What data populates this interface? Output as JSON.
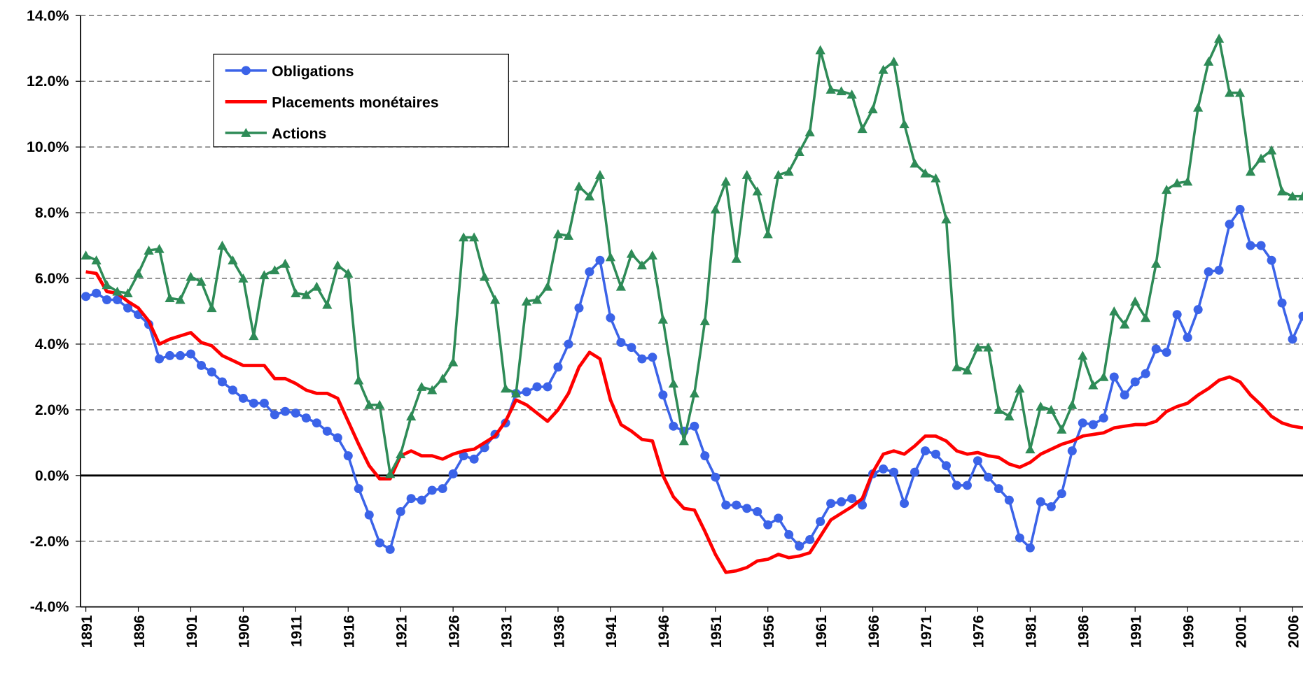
{
  "chart_data": {
    "type": "line",
    "x": [
      1891,
      1892,
      1893,
      1894,
      1895,
      1896,
      1897,
      1898,
      1899,
      1900,
      1901,
      1902,
      1903,
      1904,
      1905,
      1906,
      1907,
      1908,
      1909,
      1910,
      1911,
      1912,
      1913,
      1914,
      1915,
      1916,
      1917,
      1918,
      1919,
      1920,
      1921,
      1922,
      1923,
      1924,
      1925,
      1926,
      1927,
      1928,
      1929,
      1930,
      1931,
      1932,
      1933,
      1934,
      1935,
      1936,
      1937,
      1938,
      1939,
      1940,
      1941,
      1942,
      1943,
      1944,
      1945,
      1946,
      1947,
      1948,
      1949,
      1950,
      1951,
      1952,
      1953,
      1954,
      1955,
      1956,
      1957,
      1958,
      1959,
      1960,
      1961,
      1962,
      1963,
      1964,
      1965,
      1966,
      1967,
      1968,
      1969,
      1970,
      1971,
      1972,
      1973,
      1974,
      1975,
      1976,
      1977,
      1978,
      1979,
      1980,
      1981,
      1982,
      1983,
      1984,
      1985,
      1986,
      1987,
      1988,
      1989,
      1990,
      1991,
      1992,
      1993,
      1994,
      1995,
      1996,
      1997,
      1998,
      1999,
      2000,
      2001,
      2002,
      2003,
      2004,
      2005,
      2006,
      2007
    ],
    "series": [
      {
        "name": "Obligations",
        "color": "#3b63e8",
        "marker": "circle",
        "values": [
          5.45,
          5.55,
          5.35,
          5.35,
          5.1,
          4.9,
          4.6,
          3.55,
          3.65,
          3.65,
          3.7,
          3.35,
          3.15,
          2.85,
          2.6,
          2.35,
          2.2,
          2.2,
          1.85,
          1.95,
          1.9,
          1.75,
          1.6,
          1.35,
          1.15,
          0.6,
          -0.4,
          -1.2,
          -2.05,
          -2.25,
          -1.1,
          -0.7,
          -0.75,
          -0.45,
          -0.4,
          0.05,
          0.6,
          0.5,
          0.85,
          1.25,
          1.6,
          2.5,
          2.55,
          2.7,
          2.7,
          3.3,
          4.0,
          5.1,
          6.2,
          6.55,
          4.8,
          4.05,
          3.9,
          3.55,
          3.6,
          2.45,
          1.5,
          1.35,
          1.5,
          0.6,
          -0.05,
          -0.9,
          -0.9,
          -1.0,
          -1.1,
          -1.5,
          -1.3,
          -1.8,
          -2.15,
          -1.95,
          -1.4,
          -0.85,
          -0.8,
          -0.7,
          -0.9,
          0.05,
          0.2,
          0.1,
          -0.85,
          0.1,
          0.75,
          0.65,
          0.3,
          -0.3,
          -0.3,
          0.45,
          -0.05,
          -0.4,
          -0.75,
          -1.9,
          -2.2,
          -0.8,
          -0.95,
          -0.55,
          0.75,
          1.6,
          1.55,
          1.75,
          3.0,
          2.45,
          2.85,
          3.1,
          3.85,
          3.75,
          4.9,
          4.2,
          5.05,
          6.2,
          6.25,
          7.65,
          8.1,
          7.0,
          7.0,
          6.55,
          5.25,
          4.15,
          4.85
        ]
      },
      {
        "name": "Placements monétaires",
        "color": "#ff0000",
        "marker": "none",
        "values": [
          6.2,
          6.15,
          5.6,
          5.55,
          5.3,
          5.1,
          4.7,
          4.0,
          4.15,
          4.25,
          4.35,
          4.05,
          3.95,
          3.65,
          3.5,
          3.35,
          3.35,
          3.35,
          2.95,
          2.95,
          2.8,
          2.6,
          2.5,
          2.5,
          2.35,
          1.65,
          0.95,
          0.3,
          -0.1,
          -0.1,
          0.6,
          0.75,
          0.6,
          0.6,
          0.5,
          0.65,
          0.75,
          0.8,
          1.0,
          1.2,
          1.65,
          2.3,
          2.15,
          1.9,
          1.65,
          2.0,
          2.5,
          3.3,
          3.75,
          3.55,
          2.3,
          1.55,
          1.35,
          1.1,
          1.05,
          0.0,
          -0.65,
          -1.0,
          -1.05,
          -1.7,
          -2.4,
          -2.95,
          -2.9,
          -2.8,
          -2.6,
          -2.55,
          -2.4,
          -2.5,
          -2.45,
          -2.35,
          -1.85,
          -1.35,
          -1.15,
          -0.95,
          -0.7,
          0.1,
          0.65,
          0.75,
          0.65,
          0.9,
          1.2,
          1.2,
          1.05,
          0.75,
          0.65,
          0.7,
          0.6,
          0.55,
          0.35,
          0.25,
          0.4,
          0.65,
          0.8,
          0.95,
          1.05,
          1.2,
          1.25,
          1.3,
          1.45,
          1.5,
          1.55,
          1.55,
          1.65,
          1.95,
          2.1,
          2.2,
          2.45,
          2.65,
          2.9,
          3.0,
          2.85,
          2.45,
          2.15,
          1.8,
          1.6,
          1.5,
          1.45
        ]
      },
      {
        "name": "Actions",
        "color": "#2e8b57",
        "marker": "triangle",
        "values": [
          6.7,
          6.55,
          5.8,
          5.6,
          5.55,
          6.15,
          6.85,
          6.9,
          5.4,
          5.35,
          6.05,
          5.9,
          5.1,
          7.0,
          6.55,
          6.0,
          4.25,
          6.1,
          6.25,
          6.45,
          5.55,
          5.5,
          5.75,
          5.2,
          6.4,
          6.15,
          2.9,
          2.15,
          2.15,
          0.05,
          0.65,
          1.8,
          2.7,
          2.6,
          2.95,
          3.45,
          7.25,
          7.25,
          6.05,
          5.35,
          2.65,
          2.5,
          5.3,
          5.35,
          5.75,
          7.35,
          7.3,
          8.8,
          8.5,
          9.15,
          6.65,
          5.75,
          6.75,
          6.4,
          6.7,
          4.75,
          2.8,
          1.05,
          2.5,
          4.7,
          8.1,
          8.95,
          6.6,
          9.15,
          8.65,
          7.35,
          9.15,
          9.25,
          9.85,
          10.45,
          12.95,
          11.75,
          11.7,
          11.6,
          10.55,
          11.15,
          12.35,
          12.6,
          10.7,
          9.5,
          9.2,
          9.05,
          7.8,
          3.3,
          3.2,
          3.9,
          3.9,
          2.0,
          1.8,
          2.65,
          0.8,
          2.1,
          2.0,
          1.4,
          2.15,
          3.65,
          2.75,
          3.0,
          5.0,
          4.6,
          5.3,
          4.8,
          6.45,
          8.7,
          8.9,
          8.95,
          11.2,
          12.6,
          13.3,
          11.65,
          11.65,
          9.25,
          9.65,
          9.9,
          8.65,
          8.5,
          8.5
        ]
      }
    ],
    "xlim": [
      1890.5,
      2007
    ],
    "xticks": [
      1891,
      1896,
      1901,
      1906,
      1911,
      1916,
      1921,
      1926,
      1931,
      1936,
      1941,
      1946,
      1951,
      1956,
      1961,
      1966,
      1971,
      1976,
      1981,
      1986,
      1991,
      1996,
      2001,
      2006
    ],
    "ylim": [
      -4,
      14
    ],
    "yticks": [
      {
        "value": -4,
        "label": "-4.0%"
      },
      {
        "value": -2,
        "label": "-2.0%"
      },
      {
        "value": 0,
        "label": "0.0%"
      },
      {
        "value": 2,
        "label": "2.0%"
      },
      {
        "value": 4,
        "label": "4.0%"
      },
      {
        "value": 6,
        "label": "6.0%"
      },
      {
        "value": 8,
        "label": "8.0%"
      },
      {
        "value": 10,
        "label": "10.0%"
      },
      {
        "value": 12,
        "label": "12.0%"
      },
      {
        "value": 14,
        "label": "14.0%"
      }
    ],
    "grid": true,
    "legend_position": "upper-left"
  }
}
